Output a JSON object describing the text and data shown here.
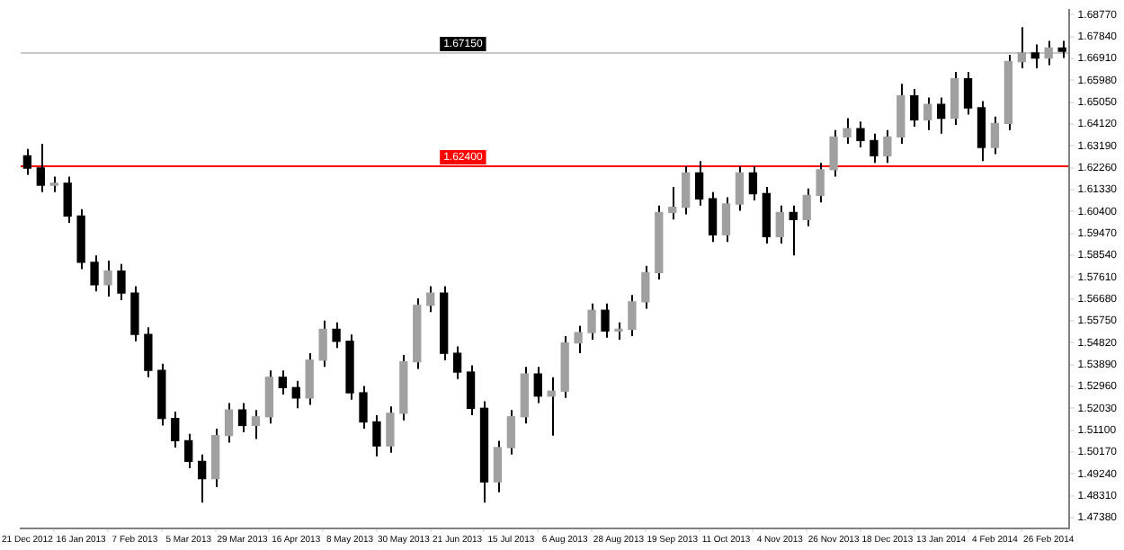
{
  "chart_data": {
    "type": "candlestick",
    "categories": [
      "21 Dec 2012",
      null,
      null,
      null,
      "16 Jan 2013",
      null,
      null,
      null,
      "7 Feb 2013",
      null,
      null,
      null,
      "5 Mar 2013",
      null,
      null,
      null,
      "29 Mar 2013",
      null,
      null,
      null,
      "16 Apr 2013",
      null,
      null,
      null,
      "8 May 2013",
      null,
      null,
      null,
      "30 May 2013",
      null,
      null,
      null,
      "21 Jun 2013",
      null,
      null,
      null,
      "15 Jul 2013",
      null,
      null,
      null,
      "6 Aug 2013",
      null,
      null,
      null,
      "28 Aug 2013",
      null,
      null,
      null,
      "19 Sep 2013",
      null,
      null,
      null,
      "11 Oct 2013",
      null,
      null,
      null,
      "4 Nov 2013",
      null,
      null,
      null,
      "26 Nov 2013",
      null,
      null,
      null,
      "18 Dec 2013",
      null,
      null,
      null,
      "13 Jan 2014",
      null,
      null,
      null,
      "4 Feb 2014",
      null,
      null,
      null,
      "26 Feb 2014",
      null
    ],
    "series": [
      {
        "color": "#000000",
        "colors": [
          "#000000",
          "#000000",
          "#a0a0a0",
          "#000000",
          "#000000",
          "#000000",
          "#a0a0a0",
          "#000000",
          "#000000",
          "#000000",
          "#000000",
          "#000000",
          "#000000",
          "#000000",
          "#a0a0a0",
          "#a0a0a0",
          "#000000",
          "#a0a0a0",
          "#a0a0a0",
          "#000000",
          "#000000",
          "#a0a0a0",
          "#a0a0a0",
          "#000000",
          "#000000",
          "#000000",
          "#000000",
          "#a0a0a0",
          "#a0a0a0",
          "#a0a0a0",
          "#a0a0a0",
          "#000000",
          "#000000",
          "#000000",
          "#000000",
          "#a0a0a0",
          "#a0a0a0",
          "#a0a0a0",
          "#000000",
          "#a0a0a0",
          "#a0a0a0",
          "#a0a0a0",
          "#a0a0a0",
          "#000000",
          "#a0a0a0",
          "#a0a0a0",
          "#a0a0a0",
          "#a0a0a0",
          "#a0a0a0",
          "#a0a0a0",
          "#000000",
          "#000000",
          "#a0a0a0",
          "#a0a0a0",
          "#000000",
          "#000000",
          "#a0a0a0",
          "#000000",
          "#a0a0a0",
          "#a0a0a0",
          "#a0a0a0",
          "#a0a0a0",
          "#000000",
          "#000000",
          "#a0a0a0",
          "#a0a0a0",
          "#000000",
          "#a0a0a0",
          "#000000",
          "#a0a0a0",
          "#000000",
          "#000000",
          "#a0a0a0",
          "#a0a0a0",
          "#a0a0a0",
          "#000000",
          "#a0a0a0",
          "#000000"
        ],
        "ohlc": [
          [
            1.6277,
            1.6306,
            1.6196,
            1.6225
          ],
          [
            1.6225,
            1.6328,
            1.6123,
            1.6152
          ],
          [
            1.6152,
            1.6189,
            1.6123,
            1.616
          ],
          [
            1.616,
            1.6189,
            1.5992,
            1.6021
          ],
          [
            1.6021,
            1.605,
            1.5795,
            1.5824
          ],
          [
            1.5824,
            1.5853,
            1.57,
            1.5729
          ],
          [
            1.5729,
            1.5831,
            1.5678,
            1.5787
          ],
          [
            1.5787,
            1.5817,
            1.5663,
            1.5693
          ],
          [
            1.5693,
            1.5722,
            1.5488,
            1.5517
          ],
          [
            1.5517,
            1.5547,
            1.5335,
            1.5364
          ],
          [
            1.5364,
            1.5393,
            1.513,
            1.516
          ],
          [
            1.516,
            1.5189,
            1.5036,
            1.5065
          ],
          [
            1.5065,
            1.5094,
            1.4948,
            1.4977
          ],
          [
            1.4977,
            1.5006,
            1.4802,
            1.4904
          ],
          [
            1.4904,
            1.5116,
            1.4868,
            1.5087
          ],
          [
            1.5087,
            1.5225,
            1.5057,
            1.5196
          ],
          [
            1.5196,
            1.5225,
            1.5101,
            1.513
          ],
          [
            1.513,
            1.5196,
            1.5072,
            1.5167
          ],
          [
            1.5167,
            1.5364,
            1.5138,
            1.5335
          ],
          [
            1.5335,
            1.5364,
            1.5262,
            1.5291
          ],
          [
            1.5291,
            1.532,
            1.5203,
            1.5247
          ],
          [
            1.5247,
            1.5437,
            1.5218,
            1.5408
          ],
          [
            1.5408,
            1.5576,
            1.5379,
            1.5539
          ],
          [
            1.5539,
            1.5568,
            1.5459,
            1.5488
          ],
          [
            1.5488,
            1.5517,
            1.524,
            1.5269
          ],
          [
            1.5269,
            1.5298,
            1.5116,
            1.5145
          ],
          [
            1.5145,
            1.5174,
            1.4999,
            1.5043
          ],
          [
            1.5043,
            1.5211,
            1.5014,
            1.5182
          ],
          [
            1.5182,
            1.543,
            1.5152,
            1.5401
          ],
          [
            1.5401,
            1.5671,
            1.5371,
            1.5641
          ],
          [
            1.5641,
            1.5722,
            1.5612,
            1.5693
          ],
          [
            1.5693,
            1.5722,
            1.5408,
            1.5437
          ],
          [
            1.5437,
            1.5466,
            1.5328,
            1.5357
          ],
          [
            1.5357,
            1.5386,
            1.5174,
            1.5203
          ],
          [
            1.5203,
            1.5233,
            1.4802,
            1.489
          ],
          [
            1.489,
            1.5065,
            1.4846,
            1.5036
          ],
          [
            1.5036,
            1.5196,
            1.5006,
            1.5167
          ],
          [
            1.5167,
            1.5379,
            1.5138,
            1.5349
          ],
          [
            1.5349,
            1.5379,
            1.5225,
            1.5255
          ],
          [
            1.5255,
            1.5335,
            1.5087,
            1.5276
          ],
          [
            1.5276,
            1.551,
            1.5247,
            1.5481
          ],
          [
            1.5481,
            1.5554,
            1.5437,
            1.5525
          ],
          [
            1.5525,
            1.5649,
            1.5495,
            1.562
          ],
          [
            1.562,
            1.5649,
            1.5503,
            1.5532
          ],
          [
            1.5532,
            1.5568,
            1.5495,
            1.5539
          ],
          [
            1.5539,
            1.5685,
            1.551,
            1.5656
          ],
          [
            1.5656,
            1.5809,
            1.5627,
            1.578
          ],
          [
            1.578,
            1.6065,
            1.5751,
            1.6036
          ],
          [
            1.6036,
            1.6145,
            1.6006,
            1.6058
          ],
          [
            1.6058,
            1.6233,
            1.6028,
            1.6204
          ],
          [
            1.6204,
            1.6255,
            1.6065,
            1.6094
          ],
          [
            1.6094,
            1.6123,
            1.5911,
            1.5941
          ],
          [
            1.5941,
            1.6101,
            1.5911,
            1.6072
          ],
          [
            1.6072,
            1.6233,
            1.6043,
            1.6204
          ],
          [
            1.6204,
            1.6233,
            1.6087,
            1.6116
          ],
          [
            1.6116,
            1.6145,
            1.5904,
            1.5933
          ],
          [
            1.5933,
            1.6065,
            1.5904,
            1.6036
          ],
          [
            1.6036,
            1.6065,
            1.5853,
            1.6006
          ],
          [
            1.6006,
            1.6138,
            1.5977,
            1.6109
          ],
          [
            1.6109,
            1.6247,
            1.6079,
            1.6218
          ],
          [
            1.6218,
            1.6386,
            1.6189,
            1.6357
          ],
          [
            1.6357,
            1.6437,
            1.6328,
            1.6393
          ],
          [
            1.6393,
            1.6423,
            1.6313,
            1.6342
          ],
          [
            1.6342,
            1.6371,
            1.6247,
            1.6277
          ],
          [
            1.6277,
            1.6386,
            1.6247,
            1.6357
          ],
          [
            1.6357,
            1.6583,
            1.6328,
            1.6532
          ],
          [
            1.6532,
            1.6561,
            1.6401,
            1.643
          ],
          [
            1.643,
            1.6525,
            1.6386,
            1.6496
          ],
          [
            1.6496,
            1.6525,
            1.6371,
            1.6437
          ],
          [
            1.6437,
            1.6634,
            1.6408,
            1.6605
          ],
          [
            1.6605,
            1.6634,
            1.6452,
            1.6481
          ],
          [
            1.6481,
            1.651,
            1.6255,
            1.6313
          ],
          [
            1.6313,
            1.6444,
            1.6284,
            1.6415
          ],
          [
            1.6415,
            1.6707,
            1.6386,
            1.6678
          ],
          [
            1.6678,
            1.6824,
            1.6649,
            1.6715
          ],
          [
            1.6715,
            1.6751,
            1.6649,
            1.6693
          ],
          [
            1.6693,
            1.6766,
            1.6663,
            1.6736
          ],
          [
            1.6736,
            1.6766,
            1.6693,
            1.6722
          ]
        ]
      }
    ],
    "ylim": [
      1.4692,
      1.6897
    ],
    "yticks": [
      {
        "value": 1.6877,
        "label": "1.68770"
      },
      {
        "value": 1.6784,
        "label": "1.67840"
      },
      {
        "value": 1.6691,
        "label": "1.66910"
      },
      {
        "value": 1.6598,
        "label": "1.65980"
      },
      {
        "value": 1.6505,
        "label": "1.65050"
      },
      {
        "value": 1.6412,
        "label": "1.64120"
      },
      {
        "value": 1.6319,
        "label": "1.63190"
      },
      {
        "value": 1.6226,
        "label": "1.62260"
      },
      {
        "value": 1.6133,
        "label": "1.61330"
      },
      {
        "value": 1.604,
        "label": "1.60400"
      },
      {
        "value": 1.5947,
        "label": "1.59470"
      },
      {
        "value": 1.5854,
        "label": "1.58540"
      },
      {
        "value": 1.5761,
        "label": "1.57610"
      },
      {
        "value": 1.5668,
        "label": "1.56680"
      },
      {
        "value": 1.5575,
        "label": "1.55750"
      },
      {
        "value": 1.5482,
        "label": "1.54820"
      },
      {
        "value": 1.5389,
        "label": "1.53890"
      },
      {
        "value": 1.5296,
        "label": "1.52960"
      },
      {
        "value": 1.5203,
        "label": "1.52030"
      },
      {
        "value": 1.511,
        "label": "1.51100"
      },
      {
        "value": 1.5017,
        "label": "1.50170"
      },
      {
        "value": 1.4924,
        "label": "1.49240"
      },
      {
        "value": 1.4831,
        "label": "1.48310"
      },
      {
        "value": 1.4738,
        "label": "1.47380"
      }
    ],
    "ref_lines": [
      {
        "axis": "y",
        "value": 1.6715,
        "label": "1.67150",
        "color": "#c8c8c8"
      },
      {
        "axis": "y",
        "value": 1.624,
        "label": "1.62400",
        "color": "#ff0000"
      }
    ],
    "grid": false,
    "legend": false
  }
}
